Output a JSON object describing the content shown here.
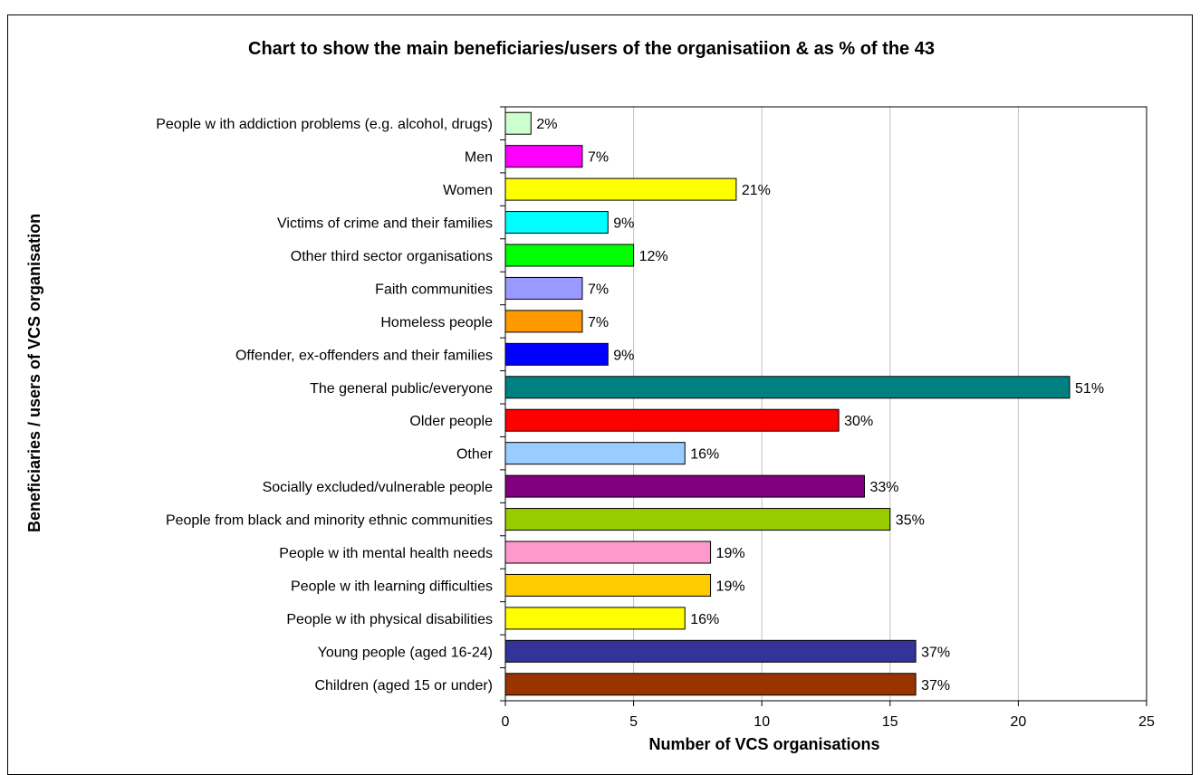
{
  "chart_data": {
    "type": "bar",
    "orientation": "horizontal",
    "title": "Chart to show the main beneficiaries/users of the organisatiion & as % of the 43",
    "xlabel": "Number of VCS organisations",
    "ylabel": "Beneficiaries / users of VCS organisation",
    "xlim": [
      0,
      25
    ],
    "xticks": [
      "0",
      "5",
      "10",
      "15",
      "20",
      "25"
    ],
    "grid": true,
    "categories": [
      "People w ith addiction problems (e.g. alcohol, drugs)",
      "Men",
      "Women",
      "Victims of crime and their families",
      "Other third sector organisations",
      "Faith communities",
      "Homeless people",
      "Offender, ex-offenders and their families",
      "The general public/everyone",
      "Older people",
      "Other",
      "Socially excluded/vulnerable people",
      "People from black and minority ethnic communities",
      "People w ith mental health needs",
      "People w ith learning difficulties",
      "People w ith physical disabilities",
      "Young people (aged 16-24)",
      "Children (aged 15 or under)"
    ],
    "values": [
      1,
      3,
      9,
      4,
      5,
      3,
      3,
      4,
      22,
      13,
      7,
      14,
      15,
      8,
      8,
      7,
      16,
      16
    ],
    "data_labels": [
      "2%",
      "7%",
      "21%",
      "9%",
      "12%",
      "7%",
      "7%",
      "9%",
      "51%",
      "30%",
      "16%",
      "33%",
      "35%",
      "19%",
      "19%",
      "16%",
      "37%",
      "37%"
    ],
    "colors": [
      "#CCFFCC",
      "#FF00FF",
      "#FFFF00",
      "#00FFFF",
      "#00FF00",
      "#9999FF",
      "#FF9900",
      "#0000FF",
      "#008080",
      "#FF0000",
      "#99CCFF",
      "#800080",
      "#99CC00",
      "#FF99CC",
      "#FFCC00",
      "#FFFF00",
      "#333399",
      "#993300"
    ]
  }
}
